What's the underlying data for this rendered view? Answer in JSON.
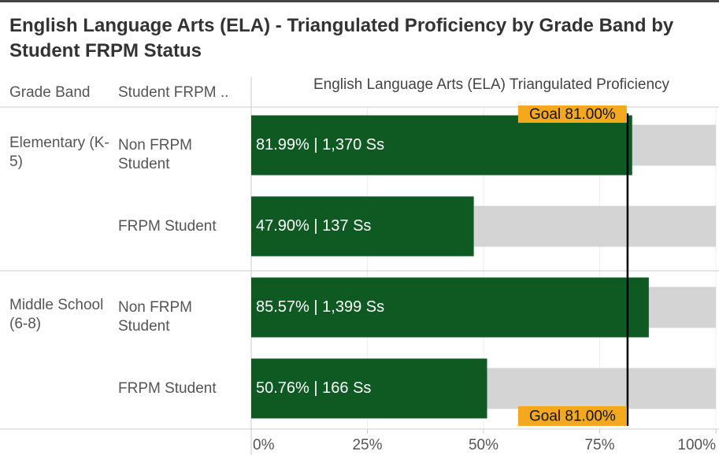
{
  "chart_data": {
    "type": "bar",
    "orientation": "horizontal",
    "title": "English Language Arts (ELA) - Triangulated Proficiency by Grade Band by Student FRPM Status",
    "column_headers": [
      "Grade Band",
      "Student FRPM .."
    ],
    "xlabel": "English Language Arts (ELA) Triangulated Proficiency",
    "groups": [
      {
        "name": "Elementary (K-5)",
        "categories": [
          "Non FRPM Student",
          "FRPM Student"
        ],
        "values": [
          81.99,
          47.9
        ],
        "value_labels": [
          "81.99% | 1,370 Ss",
          "47.90% | 137 Ss"
        ]
      },
      {
        "name": "Middle School (6-8)",
        "categories": [
          "Non FRPM Student",
          "FRPM Student"
        ],
        "values": [
          85.57,
          50.76
        ],
        "value_labels": [
          "85.57% | 1,399 Ss",
          "50.76% | 166 Ss"
        ]
      }
    ],
    "color": "#0f5a22",
    "background_color": "#d4d4d4",
    "goal": {
      "value": 81,
      "label": "Goal 81.00%",
      "color": "#f4a81d"
    },
    "xlim": [
      0,
      100
    ],
    "xticks": [
      {
        "value": 0,
        "label": "0%"
      },
      {
        "value": 25,
        "label": "25%"
      },
      {
        "value": 50,
        "label": "50%"
      },
      {
        "value": 75,
        "label": "75%"
      },
      {
        "value": 100,
        "label": "100%"
      }
    ],
    "grid": true
  }
}
